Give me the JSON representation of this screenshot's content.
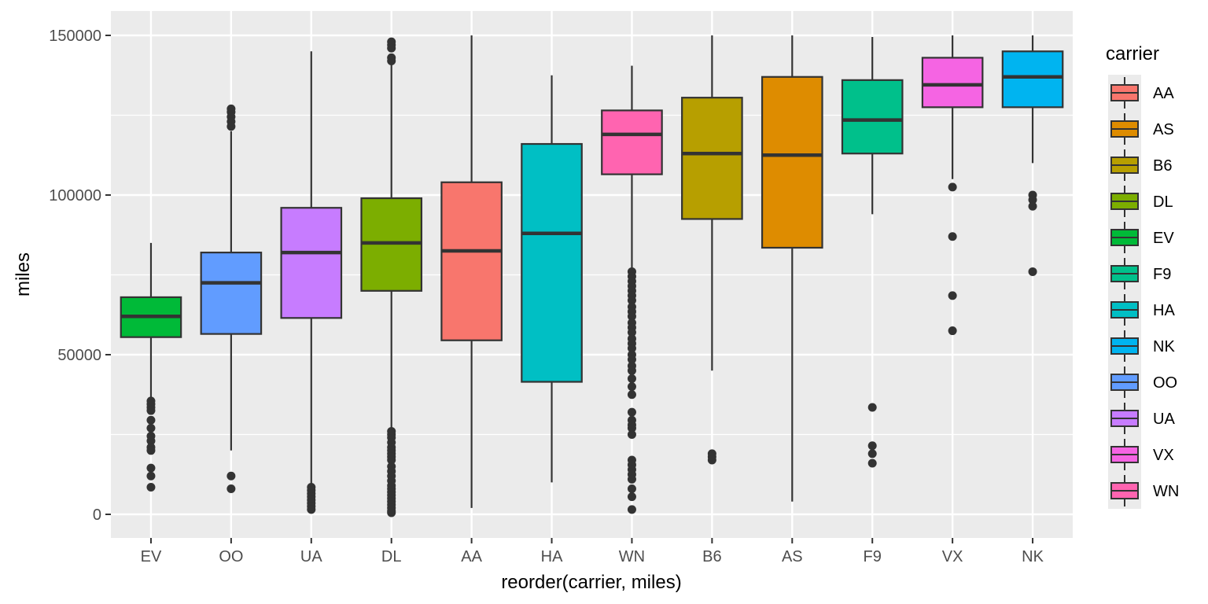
{
  "chart_data": {
    "type": "boxplot",
    "xlabel": "reorder(carrier, miles)",
    "ylabel": "miles",
    "ylim": [
      -7000,
      157000
    ],
    "yticks": [
      0,
      50000,
      100000,
      150000
    ],
    "y_tick_labels": [
      "0",
      "50000",
      "100000",
      "150000"
    ],
    "grid": true,
    "legend": {
      "title": "carrier",
      "position": "right"
    },
    "legend_order": [
      "AA",
      "AS",
      "B6",
      "DL",
      "EV",
      "F9",
      "HA",
      "NK",
      "OO",
      "UA",
      "VX",
      "WN"
    ],
    "colors": {
      "AA": "#F8766D",
      "AS": "#DE8C00",
      "B6": "#B79F00",
      "DL": "#7CAE00",
      "EV": "#00BA38",
      "F9": "#00C08B",
      "HA": "#00BFC4",
      "NK": "#00B4F0",
      "OO": "#619CFF",
      "UA": "#C77CFF",
      "VX": "#F564E3",
      "WN": "#FF64B0"
    },
    "categories": [
      "EV",
      "OO",
      "UA",
      "DL",
      "AA",
      "HA",
      "WN",
      "B6",
      "AS",
      "F9",
      "VX",
      "NK"
    ],
    "boxes": [
      {
        "carrier": "EV",
        "whisker_low": 36500,
        "q1": 55500,
        "median": 62000,
        "q3": 68000,
        "whisker_high": 85000,
        "outliers": [
          35500,
          34500,
          33500,
          32500,
          29500,
          27000,
          24500,
          23000,
          21000,
          20000,
          14500,
          12000,
          8500
        ]
      },
      {
        "carrier": "OO",
        "whisker_low": 20000,
        "q1": 56500,
        "median": 72500,
        "q3": 82000,
        "whisker_high": 120000,
        "outliers": [
          127000,
          126000,
          124500,
          123000,
          121500,
          12000,
          8000
        ]
      },
      {
        "carrier": "UA",
        "whisker_low": 9000,
        "q1": 61500,
        "median": 82000,
        "q3": 96000,
        "whisker_high": 145000,
        "outliers": [
          8500,
          7500,
          6500,
          5500,
          4500,
          3500,
          2500,
          1500
        ]
      },
      {
        "carrier": "DL",
        "whisker_low": 26500,
        "q1": 70000,
        "median": 85000,
        "q3": 99000,
        "whisker_high": 141000,
        "outliers": [
          148000,
          147000,
          146000,
          143000,
          142000,
          26000,
          25000,
          24000,
          22500,
          21000,
          20000,
          19000,
          18000,
          17000,
          15000,
          13500,
          12000,
          10500,
          9000,
          8000,
          7000,
          6000,
          5000,
          4000,
          3000,
          2000,
          1000,
          500
        ]
      },
      {
        "carrier": "AA",
        "whisker_low": 2000,
        "q1": 54500,
        "median": 82500,
        "q3": 104000,
        "whisker_high": 150000,
        "outliers": []
      },
      {
        "carrier": "HA",
        "whisker_low": 10000,
        "q1": 41500,
        "median": 88000,
        "q3": 116000,
        "whisker_high": 137500,
        "outliers": []
      },
      {
        "carrier": "WN",
        "whisker_low": 77000,
        "q1": 106500,
        "median": 119000,
        "q3": 126500,
        "whisker_high": 140500,
        "outliers": [
          76000,
          74500,
          73000,
          71500,
          70000,
          68500,
          67000,
          65000,
          63500,
          62000,
          60000,
          58500,
          57000,
          55000,
          53500,
          52000,
          50000,
          48500,
          46500,
          45000,
          42500,
          40000,
          37500,
          32000,
          29500,
          28000,
          27000,
          25000,
          17000,
          15500,
          14000,
          12500,
          11000,
          8000,
          5500,
          1500
        ]
      },
      {
        "carrier": "B6",
        "whisker_low": 45000,
        "q1": 92500,
        "median": 113000,
        "q3": 130500,
        "whisker_high": 150000,
        "outliers": [
          19000,
          18000,
          17000
        ]
      },
      {
        "carrier": "AS",
        "whisker_low": 4000,
        "q1": 83500,
        "median": 112500,
        "q3": 137000,
        "whisker_high": 150000,
        "outliers": []
      },
      {
        "carrier": "F9",
        "whisker_low": 94000,
        "q1": 113000,
        "median": 123500,
        "q3": 136000,
        "whisker_high": 149500,
        "outliers": [
          33500,
          21500,
          19000,
          16000
        ]
      },
      {
        "carrier": "VX",
        "whisker_low": 105000,
        "q1": 127500,
        "median": 134500,
        "q3": 143000,
        "whisker_high": 150000,
        "outliers": [
          102500,
          87000,
          68500,
          57500
        ]
      },
      {
        "carrier": "NK",
        "whisker_low": 110000,
        "q1": 127500,
        "median": 137000,
        "q3": 145000,
        "whisker_high": 150000,
        "outliers": [
          100000,
          98500,
          96500,
          76000
        ]
      }
    ]
  }
}
